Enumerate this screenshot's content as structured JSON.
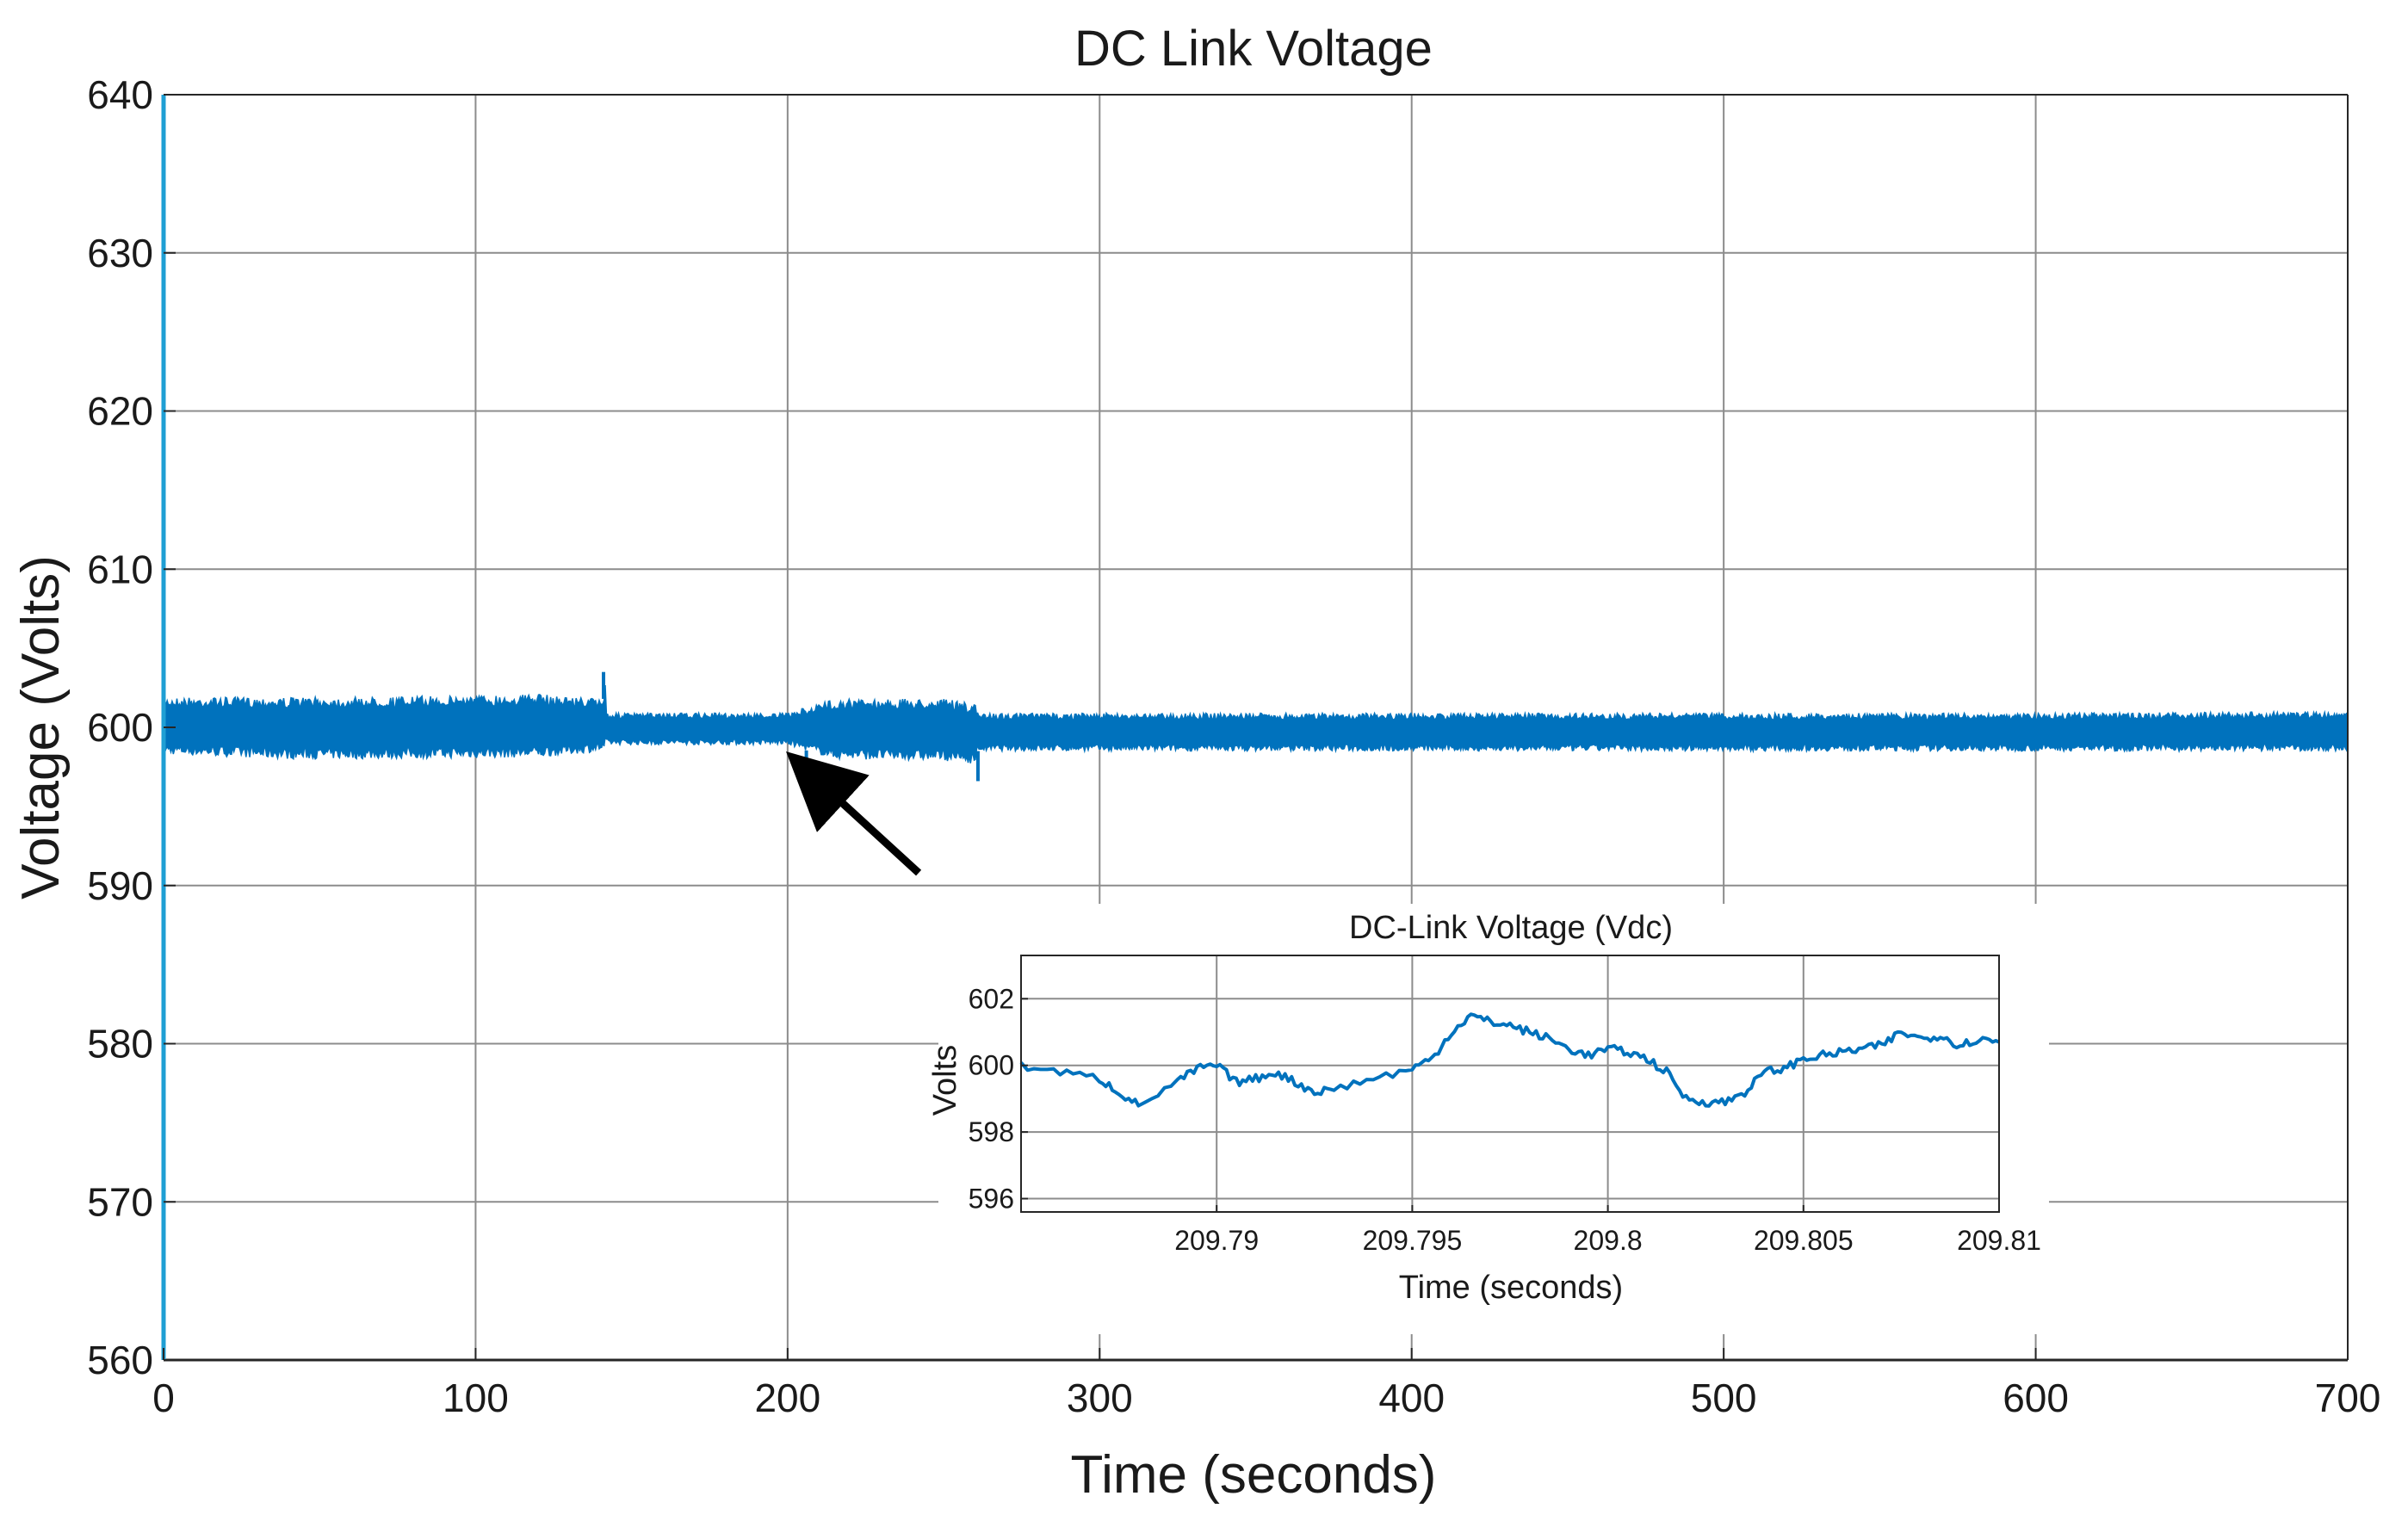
{
  "chart_data": [
    {
      "type": "line",
      "title": "DC Link Voltage",
      "xlabel": "Time (seconds)",
      "ylabel": "Voltage (Volts)",
      "xlim": [
        0,
        700
      ],
      "ylim": [
        560,
        640
      ],
      "xticks": [
        0,
        100,
        200,
        300,
        400,
        500,
        600,
        700
      ],
      "yticks": [
        560,
        570,
        580,
        590,
        600,
        610,
        620,
        630,
        640
      ],
      "grid": true,
      "color": "#0072BD",
      "band": {
        "description_points": "upper and lower envelope of the noisy voltage trace",
        "x": [
          0,
          40,
          60,
          120,
          141,
          141.5,
          142,
          200,
          215,
          250,
          260,
          261,
          300,
          400,
          500,
          600,
          700
        ],
        "upper": [
          601.9,
          601.9,
          601.9,
          602.1,
          601.8,
          603.2,
          600.9,
          600.9,
          601.8,
          601.8,
          601.5,
          600.9,
          600.9,
          600.9,
          600.9,
          600.9,
          601.0
        ],
        "lower": [
          598.3,
          598.0,
          598.0,
          598.1,
          598.5,
          598.6,
          598.9,
          598.9,
          598.0,
          597.9,
          597.7,
          598.5,
          598.5,
          598.5,
          598.5,
          598.5,
          598.5
        ]
      },
      "spikes": [
        {
          "x": 141,
          "y": 603.5
        },
        {
          "x": 206,
          "y": 597.2
        },
        {
          "x": 261,
          "y": 596.6
        }
      ]
    },
    {
      "type": "line",
      "title": "DC-Link Voltage (Vdc)",
      "xlabel": "Time (seconds)",
      "ylabel": "Volts",
      "xlim": [
        209.785,
        209.81
      ],
      "ylim": [
        595.6,
        603.3
      ],
      "xticks": [
        209.79,
        209.795,
        209.8,
        209.805,
        209.81
      ],
      "xtick_labels": [
        "209.79",
        "209.795",
        "209.8",
        "209.805",
        "209.81"
      ],
      "yticks": [
        596,
        598,
        600,
        602
      ],
      "grid": true,
      "color": "#0072BD",
      "x": [
        209.785,
        209.786,
        209.787,
        209.7875,
        209.788,
        209.789,
        209.7895,
        209.79,
        209.7905,
        209.791,
        209.7915,
        209.792,
        209.7925,
        209.793,
        209.794,
        209.795,
        209.7955,
        209.796,
        209.7965,
        209.797,
        209.7975,
        209.798,
        209.7985,
        209.799,
        209.7995,
        209.8,
        209.8005,
        209.801,
        209.8015,
        209.802,
        209.8025,
        209.803,
        209.8035,
        209.804,
        209.8045,
        209.805,
        209.8055,
        209.806,
        209.8065,
        209.807,
        209.8075,
        209.808,
        209.8085,
        209.809,
        209.8095,
        209.81
      ],
      "y": [
        600.0,
        599.8,
        599.6,
        599.2,
        598.8,
        599.5,
        599.9,
        600.0,
        599.5,
        599.6,
        599.8,
        599.5,
        599.2,
        599.3,
        599.6,
        599.9,
        600.2,
        601.0,
        601.5,
        601.3,
        601.2,
        601.0,
        600.8,
        600.5,
        600.3,
        600.5,
        600.4,
        600.2,
        599.8,
        599.0,
        598.9,
        598.9,
        599.2,
        599.8,
        599.9,
        600.2,
        600.3,
        600.4,
        600.5,
        600.6,
        601.0,
        600.8,
        600.9,
        600.6,
        600.8,
        600.7
      ]
    }
  ],
  "annotation": {
    "arrow": "points to event near t = 206 s",
    "arrow_target": {
      "x": 206,
      "y": 597.3
    },
    "arrow_tail": {
      "x": 242,
      "y": 590.8
    }
  }
}
